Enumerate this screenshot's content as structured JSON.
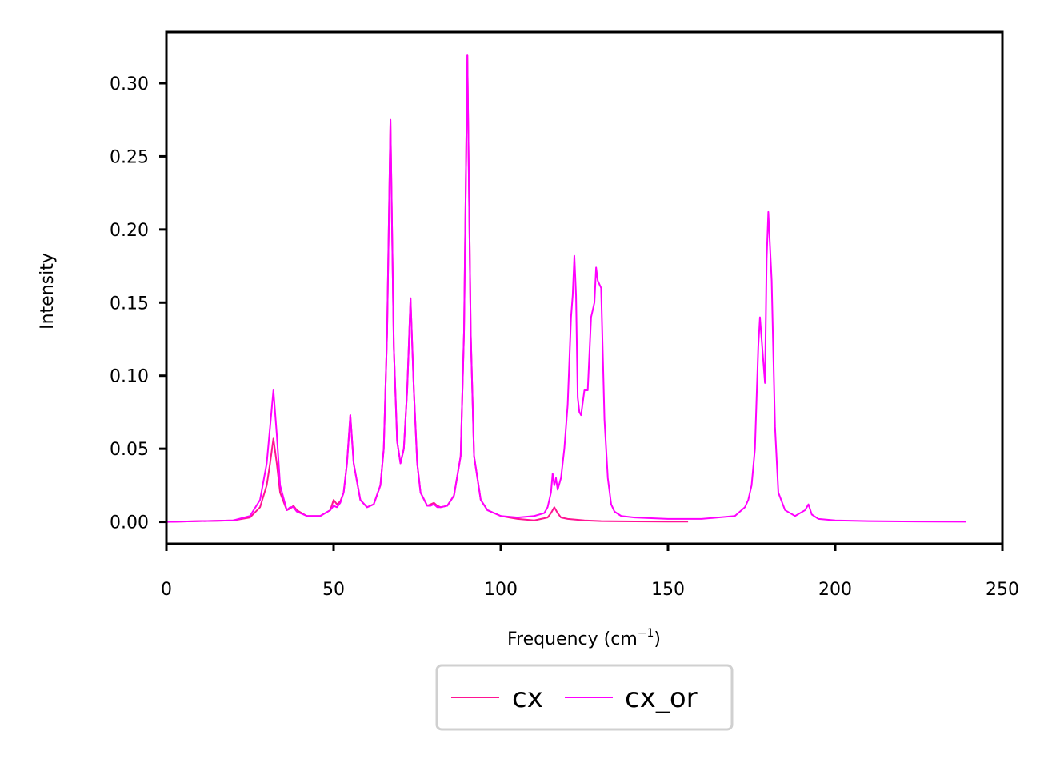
{
  "chart_data": {
    "type": "line",
    "title": "",
    "xlabel": "Frequency (cm",
    "xlabel_sup": "−1",
    "xlabel_close": ")",
    "ylabel": "Intensity",
    "xlim": [
      0,
      250
    ],
    "ylim": [
      -0.015,
      0.335
    ],
    "xticks": [
      0,
      50,
      100,
      150,
      200,
      250
    ],
    "xtick_labels": [
      "0",
      "50",
      "100",
      "150",
      "200",
      "250"
    ],
    "yticks": [
      0.0,
      0.05,
      0.1,
      0.15,
      0.2,
      0.25,
      0.3
    ],
    "ytick_labels": [
      "0.00",
      "0.05",
      "0.10",
      "0.15",
      "0.20",
      "0.25",
      "0.30"
    ],
    "grid": false,
    "legend_position": "bottom-center",
    "series": [
      {
        "name": "cx",
        "color": "#ff1493",
        "x": [
          0,
          20,
          25,
          28,
          30,
          31,
          32,
          33,
          34,
          36,
          37,
          38,
          39,
          42,
          46,
          49,
          50,
          51,
          52,
          53,
          54,
          55,
          56,
          58,
          60,
          62,
          64,
          65,
          66,
          67,
          68,
          69,
          70,
          71,
          72,
          73,
          74,
          75,
          76,
          78,
          79,
          80,
          81,
          82,
          84,
          86,
          88,
          89,
          90,
          91,
          92,
          94,
          96,
          100,
          105,
          110,
          114,
          115,
          116,
          117,
          118,
          120,
          125,
          130,
          140,
          150,
          156
        ],
        "y": [
          0.0,
          0.001,
          0.003,
          0.01,
          0.025,
          0.04,
          0.057,
          0.04,
          0.02,
          0.008,
          0.009,
          0.011,
          0.008,
          0.004,
          0.004,
          0.008,
          0.015,
          0.012,
          0.014,
          0.02,
          0.04,
          0.073,
          0.04,
          0.015,
          0.01,
          0.012,
          0.025,
          0.05,
          0.13,
          0.275,
          0.12,
          0.055,
          0.04,
          0.05,
          0.09,
          0.153,
          0.09,
          0.04,
          0.02,
          0.011,
          0.012,
          0.013,
          0.011,
          0.01,
          0.011,
          0.018,
          0.045,
          0.13,
          0.319,
          0.13,
          0.045,
          0.015,
          0.008,
          0.004,
          0.002,
          0.001,
          0.003,
          0.006,
          0.01,
          0.006,
          0.003,
          0.002,
          0.001,
          0.0005,
          0.0003,
          0.0002,
          0.0002
        ]
      },
      {
        "name": "cx_or",
        "color": "#ff00ff",
        "x": [
          0,
          20,
          25,
          28,
          30,
          31,
          32,
          33,
          34,
          36,
          37,
          38,
          39,
          42,
          46,
          49,
          50,
          51,
          52,
          53,
          54,
          55,
          56,
          58,
          60,
          62,
          64,
          65,
          66,
          67,
          68,
          69,
          70,
          71,
          72,
          73,
          74,
          75,
          76,
          78,
          79,
          80,
          81,
          82,
          84,
          86,
          88,
          89,
          90,
          91,
          92,
          94,
          96,
          100,
          105,
          110,
          113,
          114,
          115,
          115.5,
          116,
          116.5,
          117,
          118,
          119,
          120,
          121,
          121.5,
          122,
          122.5,
          123,
          123.5,
          124,
          125,
          126,
          127,
          128,
          128.5,
          129,
          130,
          131,
          132,
          133,
          134,
          136,
          140,
          150,
          160,
          170,
          173,
          174,
          175,
          176,
          177,
          177.5,
          178,
          179,
          179.5,
          180,
          181,
          182,
          183,
          185,
          188,
          191,
          192,
          193,
          195,
          200,
          210,
          220,
          230,
          239
        ],
        "y": [
          0.0,
          0.001,
          0.004,
          0.015,
          0.04,
          0.065,
          0.09,
          0.06,
          0.025,
          0.008,
          0.01,
          0.01,
          0.007,
          0.004,
          0.004,
          0.008,
          0.011,
          0.01,
          0.013,
          0.02,
          0.04,
          0.073,
          0.04,
          0.015,
          0.01,
          0.012,
          0.025,
          0.05,
          0.13,
          0.275,
          0.12,
          0.055,
          0.04,
          0.05,
          0.09,
          0.153,
          0.09,
          0.04,
          0.02,
          0.011,
          0.011,
          0.012,
          0.01,
          0.01,
          0.011,
          0.018,
          0.045,
          0.13,
          0.319,
          0.13,
          0.045,
          0.015,
          0.008,
          0.004,
          0.003,
          0.004,
          0.006,
          0.01,
          0.02,
          0.033,
          0.025,
          0.03,
          0.022,
          0.03,
          0.05,
          0.08,
          0.14,
          0.155,
          0.182,
          0.155,
          0.085,
          0.075,
          0.073,
          0.09,
          0.09,
          0.14,
          0.15,
          0.174,
          0.165,
          0.16,
          0.07,
          0.03,
          0.012,
          0.007,
          0.004,
          0.003,
          0.002,
          0.002,
          0.004,
          0.01,
          0.015,
          0.025,
          0.05,
          0.12,
          0.14,
          0.125,
          0.095,
          0.18,
          0.212,
          0.165,
          0.065,
          0.02,
          0.008,
          0.004,
          0.008,
          0.012,
          0.005,
          0.002,
          0.001,
          0.0005,
          0.0003,
          0.0002,
          0.0001
        ]
      }
    ]
  }
}
